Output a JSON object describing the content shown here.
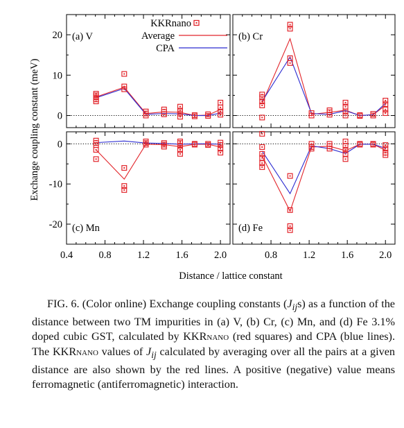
{
  "figure": {
    "ylabel": "Exchange coupling constant (meV)",
    "xlabel": "Distance / lattice constant"
  },
  "legend": {
    "kkrnano": "KKRnano",
    "average": "Average",
    "cpa": "CPA"
  },
  "chart_data": [
    {
      "type": "scatter+line",
      "panel_label": "(a) V",
      "xlim": [
        0.4,
        2.1
      ],
      "ylim": [
        -3,
        25
      ],
      "yticks": [
        0,
        10,
        20
      ],
      "xticks": [
        0.4,
        0.8,
        1.2,
        1.6,
        2.0
      ],
      "x": [
        0.707,
        1.0,
        1.225,
        1.414,
        1.581,
        1.732,
        1.871,
        2.0
      ],
      "kkrnano": [
        [
          3.5,
          4.0,
          4.5,
          5.0,
          5.4
        ],
        [
          6.5,
          7.2,
          10.3
        ],
        [
          0.0,
          0.5,
          1.0
        ],
        [
          0.3,
          0.9,
          1.5
        ],
        [
          -0.3,
          0.5,
          1.2,
          2.2
        ],
        [
          -0.2,
          0.1
        ],
        [
          -0.1,
          0.3
        ],
        [
          0.2,
          1.0,
          2.0,
          3.2
        ]
      ],
      "average": [
        4.6,
        7.0,
        0.5,
        0.9,
        0.8,
        0.0,
        0.1,
        1.5
      ],
      "cpa": [
        4.4,
        6.7,
        0.3,
        0.5,
        0.4,
        0.0,
        0.0,
        0.6
      ]
    },
    {
      "type": "scatter+line",
      "panel_label": "(b) Cr",
      "xlim": [
        0.4,
        2.1
      ],
      "ylim": [
        -3,
        25
      ],
      "yticks": [
        0,
        10,
        20
      ],
      "xticks": [
        0.4,
        0.8,
        1.2,
        1.6,
        2.0
      ],
      "x": [
        0.707,
        1.0,
        1.225,
        1.414,
        1.581,
        1.732,
        1.871,
        2.0
      ],
      "kkrnano": [
        [
          -0.5,
          2.5,
          3.5,
          4.5,
          5.2
        ],
        [
          13.0,
          14.2,
          21.5,
          22.5
        ],
        [
          0.0,
          0.6
        ],
        [
          0.2,
          0.8,
          1.3
        ],
        [
          0.0,
          1.0,
          2.2,
          3.2
        ],
        [
          -0.1,
          0.1
        ],
        [
          0.0,
          0.4
        ],
        [
          0.6,
          1.5,
          2.8,
          3.7
        ]
      ],
      "average": [
        3.0,
        19.0,
        0.3,
        0.8,
        1.3,
        0.0,
        0.2,
        2.5
      ],
      "cpa": [
        3.5,
        14.5,
        0.5,
        0.3,
        1.2,
        0.0,
        0.2,
        3.0
      ]
    },
    {
      "type": "scatter+line",
      "panel_label": "(c) Mn",
      "xlim": [
        0.4,
        2.1
      ],
      "ylim": [
        -25,
        3
      ],
      "yticks": [
        -20,
        -10,
        0
      ],
      "xticks": [
        0.4,
        0.8,
        1.2,
        1.6,
        2.0
      ],
      "x": [
        0.707,
        1.0,
        1.225,
        1.414,
        1.581,
        1.732,
        1.871,
        2.0
      ],
      "kkrnano": [
        [
          -3.8,
          -1.5,
          -0.3,
          0.2,
          0.8
        ],
        [
          -6.0,
          -10.5,
          -11.5
        ],
        [
          -0.2,
          0.2,
          0.6
        ],
        [
          0.2,
          -0.2,
          -0.7
        ],
        [
          -2.5,
          -1.5,
          -0.5,
          0.2,
          0.6
        ],
        [
          0.0,
          -0.2
        ],
        [
          0.0,
          -0.3
        ],
        [
          -2.2,
          -1.2,
          -0.3,
          0.3
        ]
      ],
      "average": [
        -1.5,
        -8.8,
        -0.1,
        -0.2,
        -0.7,
        -0.1,
        -0.1,
        -0.8
      ],
      "cpa": [
        0.3,
        0.7,
        0.2,
        0.1,
        -0.1,
        0.0,
        0.0,
        -0.1
      ]
    },
    {
      "type": "scatter+line",
      "panel_label": "(d) Fe",
      "xlim": [
        0.4,
        2.1
      ],
      "ylim": [
        -25,
        3
      ],
      "yticks": [
        -20,
        -10,
        0
      ],
      "xticks": [
        0.4,
        0.8,
        1.2,
        1.6,
        2.0
      ],
      "x": [
        0.707,
        1.0,
        1.225,
        1.414,
        1.581,
        1.732,
        1.871,
        2.0
      ],
      "kkrnano": [
        [
          2.5,
          -0.8,
          -2.5,
          -3.5,
          -4.8,
          -5.8
        ],
        [
          -8.0,
          -16.5,
          -20.5,
          -21.5
        ],
        [
          0.0,
          -0.8,
          -1.2
        ],
        [
          0.0,
          -0.6,
          -1.2
        ],
        [
          0.6,
          -0.5,
          -1.5,
          -2.5,
          -3.8
        ],
        [
          0.0,
          -0.2
        ],
        [
          0.0,
          -0.2
        ],
        [
          -0.3,
          -1.2,
          -2.2,
          -2.8
        ]
      ],
      "average": [
        -3.0,
        -16.8,
        -0.8,
        -0.6,
        -1.7,
        -0.1,
        -0.1,
        -1.6
      ],
      "cpa": [
        -1.8,
        -12.4,
        -0.5,
        -1.2,
        -2.4,
        -0.1,
        -0.1,
        -1.1
      ]
    }
  ],
  "caption": {
    "t1": "FIG. 6. (Color online) Exchange coupling constants (",
    "j_main": "J",
    "j_sub": "ij",
    "t2": "s) as a function of the distance between two TM impurities in (a) V, (b) Cr, (c) Mn, and (d) Fe 3.1% doped cubic GST, calculated by ",
    "kkr1": "KKRnano",
    "t3": " (red squares) and CPA (blue lines). The ",
    "kkr2": "KKRnano",
    "t4": " values of ",
    "j2_main": "J",
    "j2_sub": "ij",
    "t5": " calculated by averaging over all the pairs at a given distance are also shown by the red lines. A positive (negative) value means ferromagnetic (antiferromagnetic) interaction."
  },
  "colors": {
    "kkrnano": "#e2252b",
    "average": "#e2252b",
    "cpa": "#2b2bd1",
    "axis": "#000000"
  }
}
